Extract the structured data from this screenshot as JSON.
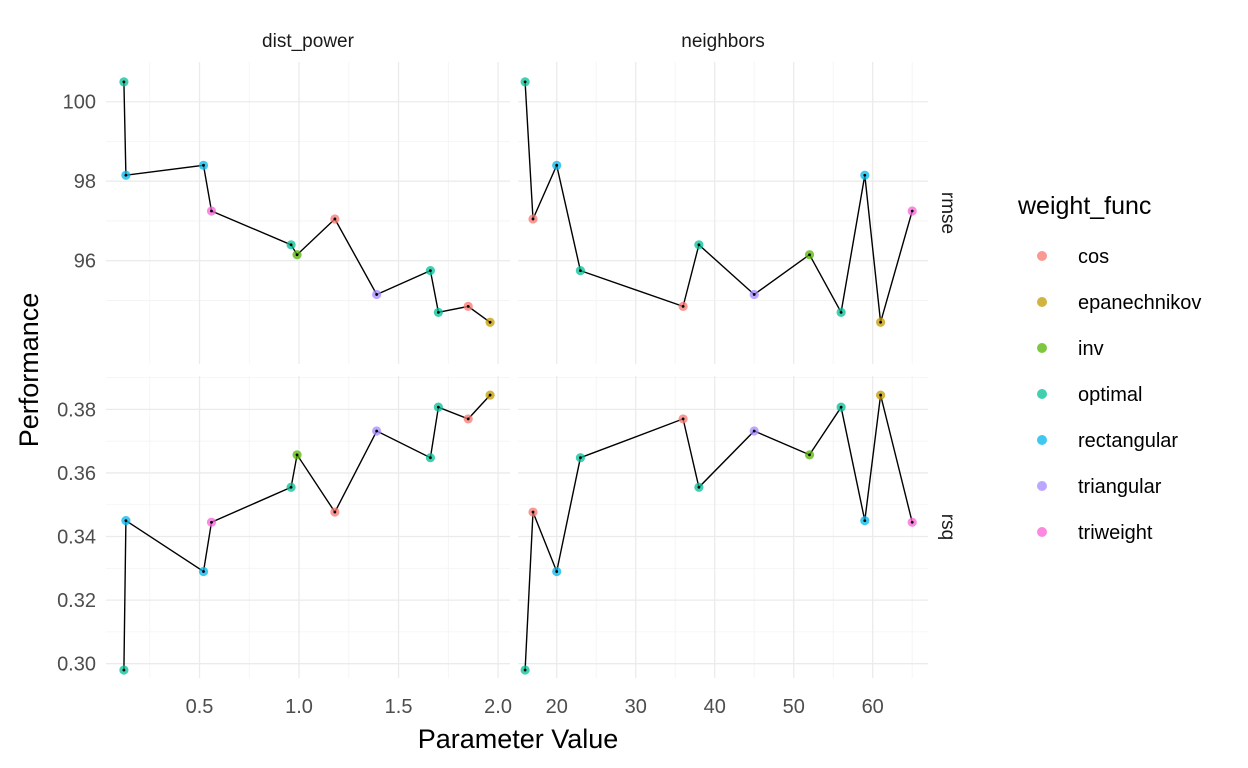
{
  "chart_data": {
    "type": "scatter",
    "xlabel": "Parameter Value",
    "ylabel": "Performance",
    "grid": true,
    "legend": {
      "title": "weight_func",
      "placement": "right",
      "entries": [
        {
          "label": "cos",
          "color": "#F8766D"
        },
        {
          "label": "epanechnikov",
          "color": "#C49A00"
        },
        {
          "label": "inv",
          "color": "#53B400"
        },
        {
          "label": "optimal",
          "color": "#00C094"
        },
        {
          "label": "rectangular",
          "color": "#00B6EB"
        },
        {
          "label": "triangular",
          "color": "#A58AFF"
        },
        {
          "label": "triweight",
          "color": "#FB61D7"
        }
      ]
    },
    "facet_cols": [
      {
        "label": "dist_power",
        "xlim": [
          0.03,
          2.06
        ],
        "ticks": [
          0.5,
          1.0,
          1.5,
          2.0
        ],
        "tick_labels": [
          "0.5",
          "1.0",
          "1.5",
          "2.0"
        ]
      },
      {
        "label": "neighbors",
        "xlim": [
          15.1,
          67.0
        ],
        "ticks": [
          20,
          30,
          40,
          50,
          60
        ],
        "tick_labels": [
          "20",
          "30",
          "40",
          "50",
          "60"
        ]
      }
    ],
    "facet_rows": [
      {
        "label": "rmse",
        "ylim": [
          93.4,
          101.0
        ],
        "ticks": [
          96,
          98,
          100
        ],
        "tick_labels": [
          "96",
          "98",
          "100"
        ]
      },
      {
        "label": "rsq",
        "ylim": [
          0.2955,
          0.3905
        ],
        "ticks": [
          0.3,
          0.32,
          0.34,
          0.36,
          0.38
        ],
        "tick_labels": [
          "0.30",
          "0.32",
          "0.34",
          "0.36",
          "0.38"
        ]
      }
    ],
    "panels": [
      {
        "col": 0,
        "row": 0,
        "points": [
          {
            "x": 0.12,
            "y": 100.5,
            "w": "optimal"
          },
          {
            "x": 0.13,
            "y": 98.15,
            "w": "rectangular"
          },
          {
            "x": 0.52,
            "y": 98.4,
            "w": "rectangular"
          },
          {
            "x": 0.56,
            "y": 97.25,
            "w": "triweight"
          },
          {
            "x": 0.96,
            "y": 96.4,
            "w": "optimal"
          },
          {
            "x": 0.99,
            "y": 96.15,
            "w": "inv"
          },
          {
            "x": 1.18,
            "y": 97.05,
            "w": "cos"
          },
          {
            "x": 1.39,
            "y": 95.15,
            "w": "triangular"
          },
          {
            "x": 1.66,
            "y": 95.75,
            "w": "optimal"
          },
          {
            "x": 1.7,
            "y": 94.7,
            "w": "optimal"
          },
          {
            "x": 1.85,
            "y": 94.85,
            "w": "cos"
          },
          {
            "x": 1.96,
            "y": 94.45,
            "w": "epanechnikov"
          }
        ]
      },
      {
        "col": 1,
        "row": 0,
        "points": [
          {
            "x": 16,
            "y": 100.5,
            "w": "optimal"
          },
          {
            "x": 17,
            "y": 97.05,
            "w": "cos"
          },
          {
            "x": 20,
            "y": 98.4,
            "w": "rectangular"
          },
          {
            "x": 23,
            "y": 95.75,
            "w": "optimal"
          },
          {
            "x": 36,
            "y": 94.85,
            "w": "cos"
          },
          {
            "x": 38,
            "y": 96.4,
            "w": "optimal"
          },
          {
            "x": 45,
            "y": 95.15,
            "w": "triangular"
          },
          {
            "x": 52,
            "y": 96.15,
            "w": "inv"
          },
          {
            "x": 56,
            "y": 94.7,
            "w": "optimal"
          },
          {
            "x": 59,
            "y": 98.15,
            "w": "rectangular"
          },
          {
            "x": 61,
            "y": 94.45,
            "w": "epanechnikov"
          },
          {
            "x": 65,
            "y": 97.25,
            "w": "triweight"
          }
        ]
      },
      {
        "col": 0,
        "row": 1,
        "points": [
          {
            "x": 0.12,
            "y": 0.298,
            "w": "optimal"
          },
          {
            "x": 0.13,
            "y": 0.345,
            "w": "rectangular"
          },
          {
            "x": 0.52,
            "y": 0.329,
            "w": "rectangular"
          },
          {
            "x": 0.56,
            "y": 0.3445,
            "w": "triweight"
          },
          {
            "x": 0.96,
            "y": 0.3555,
            "w": "optimal"
          },
          {
            "x": 0.99,
            "y": 0.3657,
            "w": "inv"
          },
          {
            "x": 1.18,
            "y": 0.3477,
            "w": "cos"
          },
          {
            "x": 1.39,
            "y": 0.3732,
            "w": "triangular"
          },
          {
            "x": 1.66,
            "y": 0.3648,
            "w": "optimal"
          },
          {
            "x": 1.7,
            "y": 0.3807,
            "w": "optimal"
          },
          {
            "x": 1.85,
            "y": 0.377,
            "w": "cos"
          },
          {
            "x": 1.96,
            "y": 0.3845,
            "w": "epanechnikov"
          }
        ]
      },
      {
        "col": 1,
        "row": 1,
        "points": [
          {
            "x": 16,
            "y": 0.298,
            "w": "optimal"
          },
          {
            "x": 17,
            "y": 0.3477,
            "w": "cos"
          },
          {
            "x": 20,
            "y": 0.329,
            "w": "rectangular"
          },
          {
            "x": 23,
            "y": 0.3648,
            "w": "optimal"
          },
          {
            "x": 36,
            "y": 0.377,
            "w": "cos"
          },
          {
            "x": 38,
            "y": 0.3555,
            "w": "optimal"
          },
          {
            "x": 45,
            "y": 0.3732,
            "w": "triangular"
          },
          {
            "x": 52,
            "y": 0.3657,
            "w": "inv"
          },
          {
            "x": 56,
            "y": 0.3807,
            "w": "optimal"
          },
          {
            "x": 59,
            "y": 0.345,
            "w": "rectangular"
          },
          {
            "x": 61,
            "y": 0.3845,
            "w": "epanechnikov"
          },
          {
            "x": 65,
            "y": 0.3445,
            "w": "triweight"
          }
        ]
      }
    ]
  }
}
